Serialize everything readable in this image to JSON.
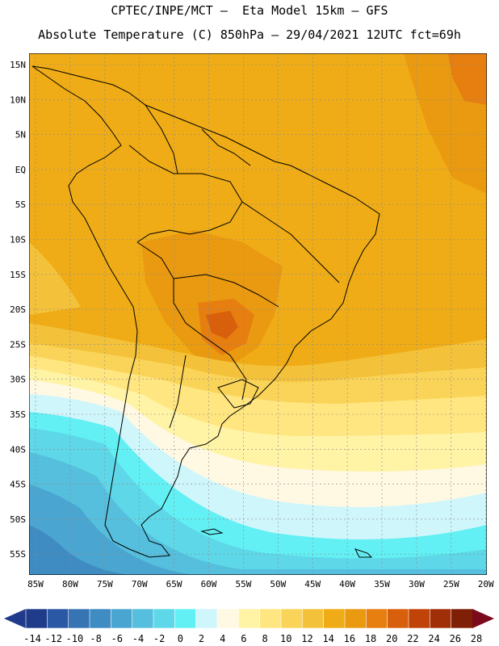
{
  "header": {
    "line1": "CPTEC/INPE/MCT —  Eta Model 15km — GFS",
    "line2": "Absolute Temperature (C) 850hPa — 29/04/2021 12UTC fct=69h"
  },
  "map": {
    "lat_labels": [
      "15N",
      "10N",
      "5N",
      "EQ",
      "5S",
      "10S",
      "15S",
      "20S",
      "25S",
      "30S",
      "35S",
      "40S",
      "45S",
      "50S",
      "55S"
    ],
    "lon_labels": [
      "85W",
      "80W",
      "75W",
      "70W",
      "65W",
      "60W",
      "55W",
      "50W",
      "45W",
      "40W",
      "35W",
      "30W",
      "25W",
      "20W"
    ]
  },
  "colorbar": {
    "labels": [
      "-14",
      "-12",
      "-10",
      "-8",
      "-6",
      "-4",
      "-2",
      "0",
      "2",
      "4",
      "6",
      "8",
      "10",
      "12",
      "14",
      "16",
      "18",
      "20",
      "22",
      "24",
      "26",
      "28"
    ],
    "colors": [
      "#1f3c8a",
      "#2a58a4",
      "#3674b4",
      "#3f8cc3",
      "#4aa6d1",
      "#55bfdd",
      "#5ed8e8",
      "#62f0f4",
      "#cff6fb",
      "#fff8e3",
      "#fff3a6",
      "#ffe680",
      "#fad458",
      "#f4c23a",
      "#efac16",
      "#ea9a10",
      "#e67e10",
      "#d8600c",
      "#c04408",
      "#a02e06",
      "#7f1f06"
    ],
    "low_arrow_color": "#213a8a",
    "high_arrow_color": "#7a0a1c"
  }
}
